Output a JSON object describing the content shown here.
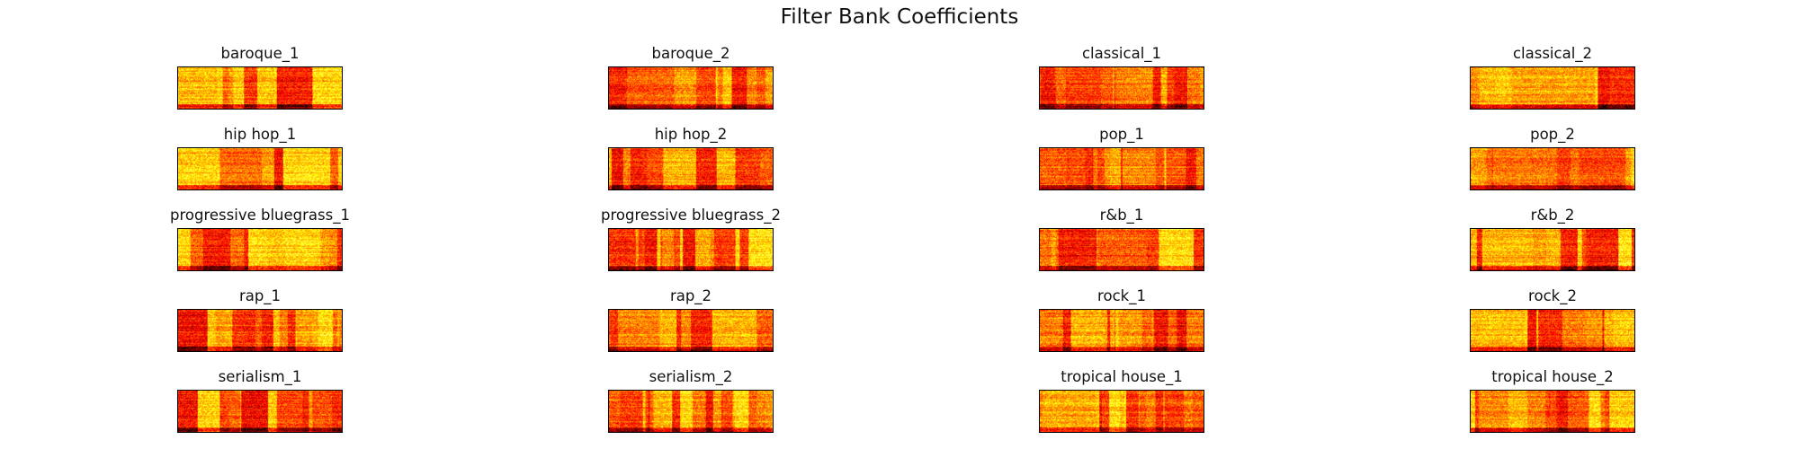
{
  "chart_data": {
    "type": "heatmap",
    "title": "Filter Bank Coefficients",
    "colormap": "hot",
    "axes_visible": false,
    "grid": false,
    "layout": {
      "rows": 5,
      "cols": 4
    },
    "panels": [
      {
        "title": "baroque_1"
      },
      {
        "title": "baroque_2"
      },
      {
        "title": "classical_1"
      },
      {
        "title": "classical_2"
      },
      {
        "title": "hip hop_1"
      },
      {
        "title": "hip hop_2"
      },
      {
        "title": "pop_1"
      },
      {
        "title": "pop_2"
      },
      {
        "title": "progressive bluegrass_1"
      },
      {
        "title": "progressive bluegrass_2"
      },
      {
        "title": "r&b_1"
      },
      {
        "title": "r&b_2"
      },
      {
        "title": "rap_1"
      },
      {
        "title": "rap_2"
      },
      {
        "title": "rock_1"
      },
      {
        "title": "rock_2"
      },
      {
        "title": "serialism_1"
      },
      {
        "title": "serialism_2"
      },
      {
        "title": "tropical house_1"
      },
      {
        "title": "tropical house_2"
      }
    ]
  }
}
